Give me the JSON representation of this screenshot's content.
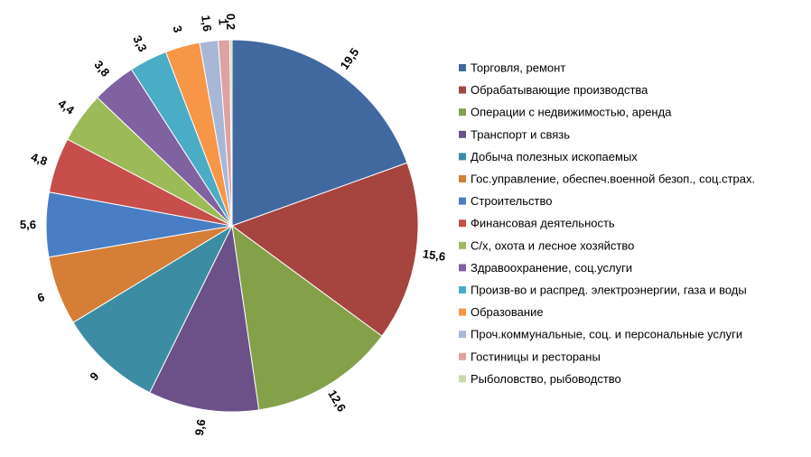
{
  "chart_data": {
    "type": "pie",
    "title": "",
    "legend_position": "right",
    "start_angle_deg": 0,
    "direction": "clockwise",
    "series": [
      {
        "name": "Торговля, ремонт",
        "value": 19.5,
        "label": "19,5",
        "color": "#4169A0"
      },
      {
        "name": "Обрабатывающие производства",
        "value": 15.6,
        "label": "15,6",
        "color": "#A64440"
      },
      {
        "name": "Операции с недвижимостью, аренда",
        "value": 12.6,
        "label": "12,6",
        "color": "#84A14A"
      },
      {
        "name": "Транспорт и связь",
        "value": 9.6,
        "label": "9,6",
        "color": "#6B5188"
      },
      {
        "name": "Добыча полезных ископаемых",
        "value": 9,
        "label": "9",
        "color": "#3C8DA3"
      },
      {
        "name": "Гос.управление, обеспеч.военной безоп., соц.страх.",
        "value": 6,
        "label": "6",
        "color": "#D47E38"
      },
      {
        "name": "Строительство",
        "value": 5.6,
        "label": "5,6",
        "color": "#4A7EC4"
      },
      {
        "name": "Финансовая деятельность",
        "value": 4.8,
        "label": "4,8",
        "color": "#C64E4B"
      },
      {
        "name": "С/х, охота и лесное хозяйство",
        "value": 4.4,
        "label": "4,4",
        "color": "#9CBB58"
      },
      {
        "name": "Здравоохранение, соц.услуги",
        "value": 3.8,
        "label": "3,8",
        "color": "#8062A0"
      },
      {
        "name": "Произв-во и распред. электроэнергии, газа и воды",
        "value": 3.3,
        "label": "3,3",
        "color": "#4BACC6"
      },
      {
        "name": "Образование",
        "value": 3,
        "label": "3",
        "color": "#F79646"
      },
      {
        "name": "Проч.коммунальные, соц. и персональные услуги",
        "value": 1.6,
        "label": "1,6",
        "color": "#A9B7D7"
      },
      {
        "name": "Гостиницы и рестораны",
        "value": 1,
        "label": "1",
        "color": "#DDA2A2"
      },
      {
        "name": "Рыболовство, рыбоводство",
        "value": 0.2,
        "label": "0,2",
        "color": "#C7DBAA"
      }
    ]
  }
}
